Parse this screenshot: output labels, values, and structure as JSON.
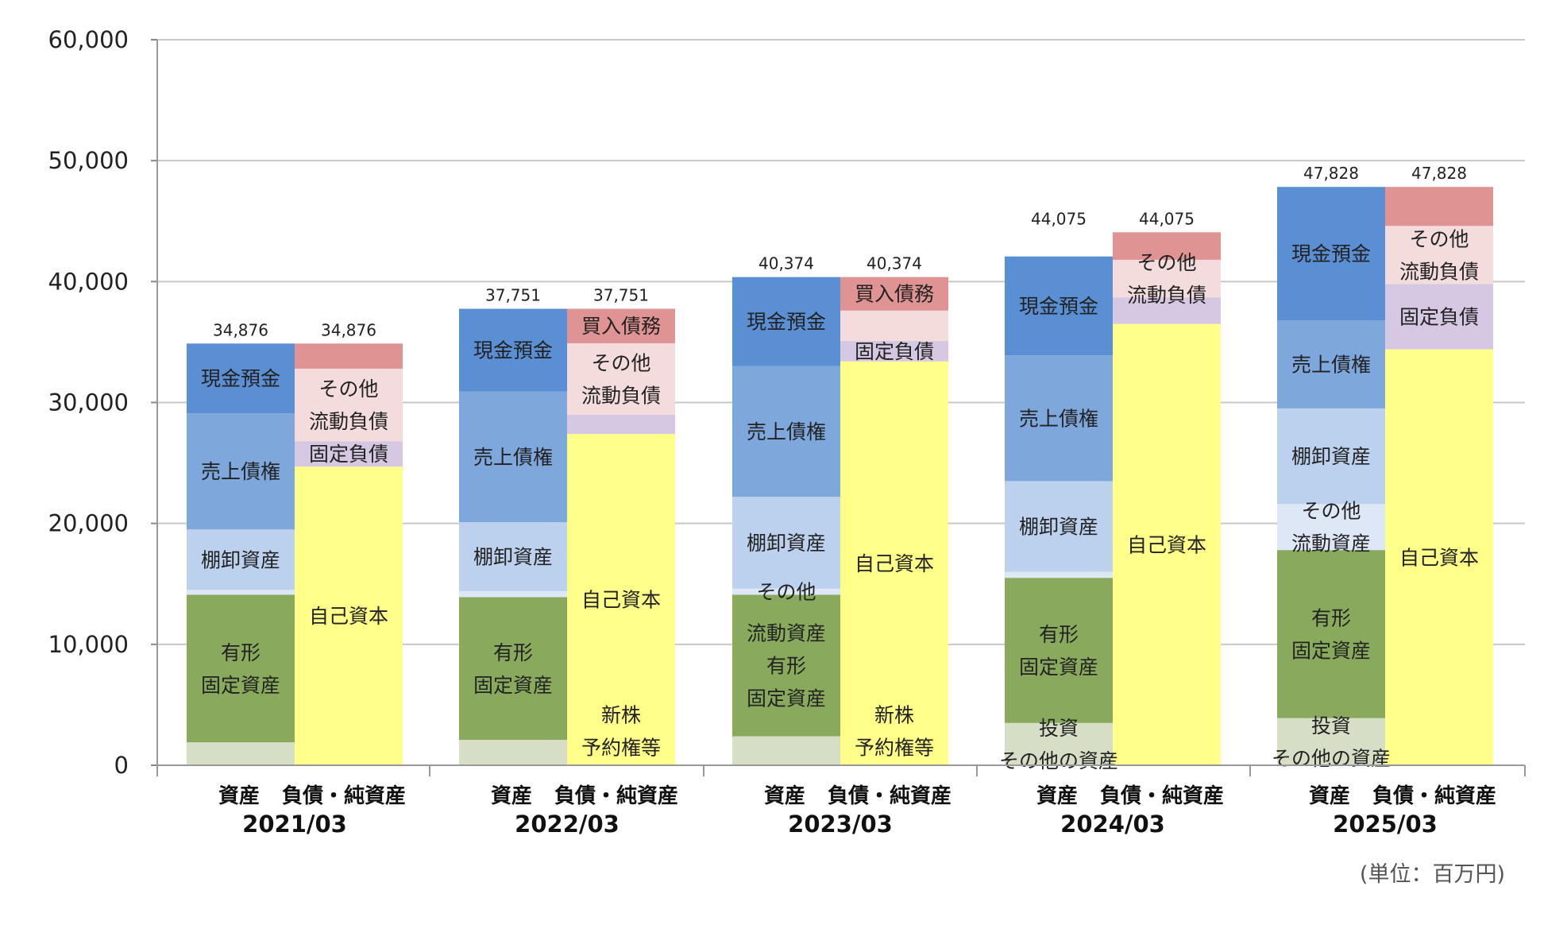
{
  "chart_data": {
    "type": "bar",
    "stacked": true,
    "unit_label": "(単位：百万円)",
    "ylim": [
      0,
      60000
    ],
    "yticks": [
      "0",
      "10,000",
      "20,000",
      "30,000",
      "40,000",
      "50,000",
      "60,000"
    ],
    "grid": true,
    "column_labels": [
      "資産",
      "負債・純資産"
    ],
    "segment_colors": {
      "現金預金": "#5b8fd4",
      "売上債権": "#7ea7dc",
      "棚卸資産": "#bcd1ee",
      "その他流動資産": "#dde7f5",
      "有形固定資産": "#89a95c",
      "投資その他の資産": "#d6dfc6",
      "買入債務": "#df9393",
      "その他流動負債": "#f4dcdc",
      "固定負債": "#d6c8e3",
      "自己資本": "#ffff8a",
      "新株予約権等": "#ffff9e"
    },
    "periods": [
      {
        "period": "2021/03",
        "assets_total": 34876,
        "assets_total_label": "34,876",
        "liabilities_total": 34876,
        "liabilities_total_label": "34,876",
        "assets": [
          {
            "name": "投資その他の資産",
            "value": 1900,
            "label": []
          },
          {
            "name": "有形固定資産",
            "value": 12200,
            "label": [
              "有形",
              "固定資産"
            ]
          },
          {
            "name": "その他流動資産",
            "value": 400,
            "label": []
          },
          {
            "name": "棚卸資産",
            "value": 5000,
            "label": [
              "棚卸資産"
            ]
          },
          {
            "name": "売上債権",
            "value": 9600,
            "label": [
              "売上債権"
            ]
          },
          {
            "name": "現金預金",
            "value": 5776,
            "label": [
              "現金預金"
            ]
          }
        ],
        "liabilities": [
          {
            "name": "新株予約権等",
            "value": 0,
            "label": []
          },
          {
            "name": "自己資本",
            "value": 24700,
            "label": [
              "自己資本"
            ]
          },
          {
            "name": "固定負債",
            "value": 2100,
            "label": [
              "固定負債"
            ]
          },
          {
            "name": "その他流動負債",
            "value": 6000,
            "label": [
              "その他",
              "流動負債"
            ]
          },
          {
            "name": "買入債務",
            "value": 2076,
            "label": []
          }
        ]
      },
      {
        "period": "2022/03",
        "assets_total": 37751,
        "assets_total_label": "37,751",
        "liabilities_total": 37751,
        "liabilities_total_label": "37,751",
        "assets": [
          {
            "name": "投資その他の資産",
            "value": 2100,
            "label": []
          },
          {
            "name": "有形固定資産",
            "value": 11800,
            "label": [
              "有形",
              "固定資産"
            ]
          },
          {
            "name": "その他流動資産",
            "value": 500,
            "label": []
          },
          {
            "name": "棚卸資産",
            "value": 5700,
            "label": [
              "棚卸資産"
            ]
          },
          {
            "name": "売上債権",
            "value": 10800,
            "label": [
              "売上債権"
            ]
          },
          {
            "name": "現金預金",
            "value": 6851,
            "label": [
              "現金預金"
            ]
          }
        ],
        "liabilities": [
          {
            "name": "新株予約権等",
            "value": 0,
            "label": [
              "新株",
              "予約権等"
            ]
          },
          {
            "name": "自己資本",
            "value": 27400,
            "label": [
              "自己資本"
            ]
          },
          {
            "name": "固定負債",
            "value": 1600,
            "label": []
          },
          {
            "name": "その他流動負債",
            "value": 5900,
            "label": [
              "その他",
              "流動負債"
            ]
          },
          {
            "name": "買入債務",
            "value": 2851,
            "label": [
              "買入債務"
            ]
          }
        ]
      },
      {
        "period": "2023/03",
        "assets_total": 40374,
        "assets_total_label": "40,374",
        "liabilities_total": 40374,
        "liabilities_total_label": "40,374",
        "assets": [
          {
            "name": "投資その他の資産",
            "value": 2400,
            "label": []
          },
          {
            "name": "有形固定資産",
            "value": 11700,
            "label": [
              "流動資産",
              "有形",
              "固定資産"
            ]
          },
          {
            "name": "その他流動資産",
            "value": 500,
            "label": [
              "その他"
            ]
          },
          {
            "name": "棚卸資産",
            "value": 7600,
            "label": [
              "棚卸資産"
            ]
          },
          {
            "name": "売上債権",
            "value": 10800,
            "label": [
              "売上債権"
            ]
          },
          {
            "name": "現金預金",
            "value": 7374,
            "label": [
              "現金預金"
            ]
          }
        ],
        "liabilities": [
          {
            "name": "新株予約権等",
            "value": 0,
            "label": [
              "新株",
              "予約権等"
            ]
          },
          {
            "name": "自己資本",
            "value": 33400,
            "label": [
              "自己資本"
            ]
          },
          {
            "name": "固定負債",
            "value": 1700,
            "label": [
              "固定負債"
            ]
          },
          {
            "name": "その他流動負債",
            "value": 2500,
            "label": []
          },
          {
            "name": "買入債務",
            "value": 2774,
            "label": [
              "買入債務"
            ]
          }
        ]
      },
      {
        "period": "2024/03",
        "assets_total": 44075,
        "assets_total_label": "44,075",
        "liabilities_total": 44075,
        "liabilities_total_label": "44,075",
        "assets": [
          {
            "name": "投資その他の資産",
            "value": 3500,
            "label": [
              "投資",
              "その他の資産"
            ]
          },
          {
            "name": "有形固定資産",
            "value": 12000,
            "label": [
              "有形",
              "固定資産"
            ]
          },
          {
            "name": "その他流動資産",
            "value": 500,
            "label": []
          },
          {
            "name": "棚卸資産",
            "value": 7500,
            "label": [
              "棚卸資産"
            ]
          },
          {
            "name": "売上債権",
            "value": 10400,
            "label": [
              "売上債権"
            ]
          },
          {
            "name": "現金預金",
            "value": 8175,
            "label": [
              "現金預金"
            ]
          }
        ],
        "liabilities": [
          {
            "name": "新株予約権等",
            "value": 0,
            "label": []
          },
          {
            "name": "自己資本",
            "value": 36500,
            "label": [
              "自己資本"
            ]
          },
          {
            "name": "固定負債",
            "value": 2200,
            "label": []
          },
          {
            "name": "その他流動負債",
            "value": 3100,
            "label": [
              "その他",
              "流動負債"
            ]
          },
          {
            "name": "買入債務",
            "value": 2275,
            "label": []
          }
        ]
      },
      {
        "period": "2025/03",
        "assets_total": 47828,
        "assets_total_label": "47,828",
        "liabilities_total": 47828,
        "liabilities_total_label": "47,828",
        "assets": [
          {
            "name": "投資その他の資産",
            "value": 3900,
            "label": [
              "投資",
              "その他の資産"
            ]
          },
          {
            "name": "有形固定資産",
            "value": 13900,
            "label": [
              "有形",
              "固定資産"
            ]
          },
          {
            "name": "その他流動資産",
            "value": 3800,
            "label": [
              "その他",
              "流動資産"
            ]
          },
          {
            "name": "棚卸資産",
            "value": 7900,
            "label": [
              "棚卸資産"
            ]
          },
          {
            "name": "売上債権",
            "value": 7300,
            "label": [
              "売上債権"
            ]
          },
          {
            "name": "現金預金",
            "value": 11028,
            "label": [
              "現金預金"
            ]
          }
        ],
        "liabilities": [
          {
            "name": "新株予約権等",
            "value": 0,
            "label": []
          },
          {
            "name": "自己資本",
            "value": 34400,
            "label": [
              "自己資本"
            ]
          },
          {
            "name": "固定負債",
            "value": 5400,
            "label": [
              "固定負債"
            ]
          },
          {
            "name": "その他流動負債",
            "value": 4800,
            "label": [
              "その他",
              "流動負債"
            ]
          },
          {
            "name": "買入債務",
            "value": 3228,
            "label": []
          }
        ]
      }
    ]
  }
}
